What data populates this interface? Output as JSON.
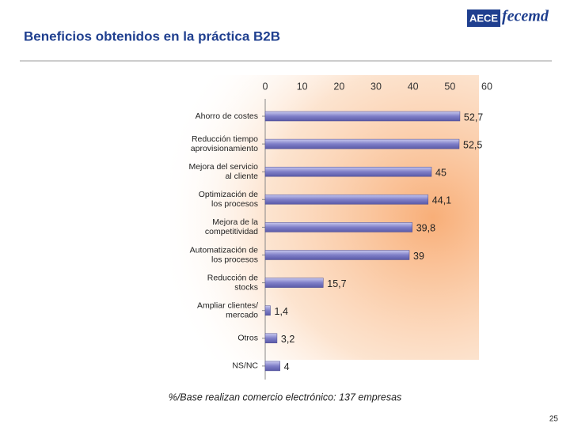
{
  "chart_data": {
    "type": "hbar",
    "title": "Beneficios obtenidos en la práctica B2B",
    "note": "%/Base realizan comercio electrónico: 137 empresas",
    "categories": [
      [
        "Ahorro de costes"
      ],
      [
        "Reducción tiempo",
        "aprovisionamiento"
      ],
      [
        "Mejora del servicio",
        "al cliente"
      ],
      [
        "Optimización de",
        "los procesos"
      ],
      [
        "Mejora de la",
        "competitividad"
      ],
      [
        "Automatización de",
        "los procesos"
      ],
      [
        "Reducción de",
        "stocks"
      ],
      [
        "Ampliar clientes/",
        "mercado"
      ],
      [
        "Otros"
      ],
      [
        "NS/NC"
      ]
    ],
    "values": [
      52.7,
      52.5,
      45,
      44.1,
      39.8,
      39,
      15.7,
      1.4,
      3.2,
      4
    ],
    "value_labels": [
      "52,7",
      "52,5",
      "45",
      "44,1",
      "39,8",
      "39",
      "15,7",
      "1,4",
      "3,2",
      "4"
    ],
    "color": "#7f7fc8",
    "xlim": [
      0,
      60
    ],
    "xticks": [
      0,
      10,
      20,
      30,
      40,
      50,
      60
    ]
  },
  "logo": {
    "left": "AECE",
    "right": "fecemd"
  },
  "page_number": "25"
}
